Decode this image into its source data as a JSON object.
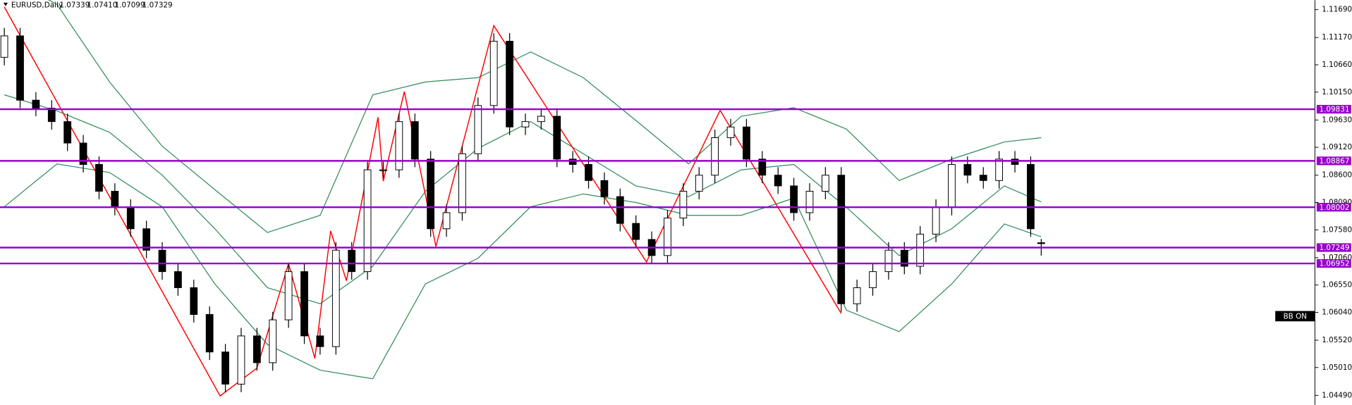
{
  "header": {
    "symbol": "EURUSD,Daily",
    "ohlc": [
      "1.07339",
      "1.07410",
      "1.07099",
      "1.07329"
    ]
  },
  "chart_data": {
    "type": "candlestick",
    "annotation": "BB ON",
    "xlim": [
      0,
      249
    ],
    "ylim": [
      1.04313,
      1.11867
    ],
    "yticks": [
      {
        "value": 1.1169,
        "label": "1.11690"
      },
      {
        "value": 1.1117,
        "label": "1.11170"
      },
      {
        "value": 1.1066,
        "label": "1.10660"
      },
      {
        "value": 1.1015,
        "label": "1.10150"
      },
      {
        "value": 1.0963,
        "label": "1.09630"
      },
      {
        "value": 1.0912,
        "label": "1.09120"
      },
      {
        "value": 1.086,
        "label": "1.08600"
      },
      {
        "value": 1.0809,
        "label": "1.08090"
      },
      {
        "value": 1.0758,
        "label": "1.07580"
      },
      {
        "value": 1.0706,
        "label": "1.07060"
      },
      {
        "value": 1.0655,
        "label": "1.06550"
      },
      {
        "value": 1.0604,
        "label": "1.06040"
      },
      {
        "value": 1.0552,
        "label": "1.05520"
      },
      {
        "value": 1.0501,
        "label": "1.05010"
      },
      {
        "value": 1.0449,
        "label": "1.04490"
      }
    ],
    "up_color": "#ffffff",
    "down_color": "#000000",
    "x": [
      0,
      3,
      6,
      9,
      12,
      15,
      18,
      21,
      24,
      27,
      30,
      33,
      36,
      39,
      42,
      45,
      48,
      51,
      54,
      57,
      60,
      63,
      66,
      69,
      72,
      75,
      78,
      81,
      84,
      87,
      90,
      93,
      96,
      99,
      102,
      105,
      108,
      111,
      114,
      117,
      120,
      123,
      126,
      129,
      132,
      135,
      138,
      141,
      144,
      147,
      150,
      153,
      156,
      159,
      162,
      165,
      168,
      171,
      174,
      177,
      180,
      183,
      186,
      189,
      192,
      195,
      197
    ],
    "open": [
      1.108,
      1.112,
      1.1,
      1.0985,
      1.096,
      1.092,
      1.088,
      1.083,
      1.08,
      1.076,
      1.072,
      1.068,
      1.065,
      1.06,
      1.053,
      1.047,
      1.056,
      1.051,
      1.059,
      1.068,
      1.056,
      1.054,
      1.072,
      1.068,
      1.087,
      1.087,
      1.096,
      1.089,
      1.076,
      1.079,
      1.09,
      1.099,
      1.111,
      1.095,
      1.096,
      1.097,
      1.089,
      1.088,
      1.085,
      1.082,
      1.077,
      1.074,
      1.071,
      1.078,
      1.083,
      1.086,
      1.093,
      1.095,
      1.089,
      1.086,
      1.084,
      1.079,
      1.083,
      1.086,
      1.062,
      1.065,
      1.068,
      1.072,
      1.069,
      1.075,
      1.08,
      1.088,
      1.086,
      1.085,
      1.089,
      1.088,
      1.07339
    ],
    "high": [
      1.1135,
      1.1135,
      1.1015,
      1.1,
      1.0975,
      1.0935,
      1.0895,
      1.0845,
      1.0815,
      1.0775,
      1.0735,
      1.0695,
      1.0665,
      1.0615,
      1.0545,
      1.0575,
      1.0575,
      1.0605,
      1.0695,
      1.0695,
      1.0575,
      1.0735,
      1.0735,
      1.0885,
      1.0885,
      1.0975,
      1.0975,
      1.0905,
      1.0805,
      1.0915,
      1.1005,
      1.1125,
      1.1125,
      1.0975,
      1.0985,
      1.0985,
      1.0905,
      1.0895,
      1.0865,
      1.0835,
      1.0785,
      1.0755,
      1.0795,
      1.0845,
      1.0875,
      1.0945,
      1.0965,
      1.0965,
      1.0905,
      1.0875,
      1.0855,
      1.0845,
      1.0875,
      1.0875,
      1.0665,
      1.0695,
      1.0735,
      1.0735,
      1.0765,
      1.0815,
      1.0895,
      1.0895,
      1.0875,
      1.0905,
      1.0905,
      1.0895,
      1.0741
    ],
    "low": [
      1.1065,
      1.0985,
      1.097,
      1.0945,
      1.0905,
      1.0865,
      1.0815,
      1.0785,
      1.0745,
      1.0705,
      1.0665,
      1.0635,
      1.0585,
      1.0515,
      1.0455,
      1.0455,
      1.0495,
      1.0495,
      1.0575,
      1.0545,
      1.0525,
      1.0525,
      1.0665,
      1.0665,
      1.0855,
      1.0855,
      1.0875,
      1.0745,
      1.0745,
      1.0775,
      1.0885,
      1.0975,
      1.0935,
      1.0935,
      1.0945,
      1.0875,
      1.0865,
      1.0835,
      1.0805,
      1.0755,
      1.0725,
      1.0695,
      1.0695,
      1.0765,
      1.0815,
      1.0845,
      1.0915,
      1.0875,
      1.0845,
      1.0825,
      1.0775,
      1.0775,
      1.0815,
      1.0605,
      1.0605,
      1.0635,
      1.0665,
      1.0675,
      1.0675,
      1.0735,
      1.0785,
      1.0845,
      1.0835,
      1.0835,
      1.0865,
      1.0745,
      1.07099
    ],
    "close": [
      1.112,
      1.1,
      1.0985,
      1.096,
      1.092,
      1.088,
      1.083,
      1.08,
      1.076,
      1.072,
      1.068,
      1.065,
      1.06,
      1.053,
      1.047,
      1.056,
      1.051,
      1.059,
      1.068,
      1.056,
      1.054,
      1.072,
      1.068,
      1.087,
      1.087,
      1.096,
      1.089,
      1.076,
      1.079,
      1.09,
      1.099,
      1.111,
      1.095,
      1.096,
      1.097,
      1.089,
      1.088,
      1.085,
      1.082,
      1.077,
      1.074,
      1.071,
      1.078,
      1.083,
      1.086,
      1.093,
      1.095,
      1.089,
      1.086,
      1.084,
      1.079,
      1.083,
      1.086,
      1.062,
      1.065,
      1.068,
      1.072,
      1.069,
      1.075,
      1.08,
      1.088,
      1.086,
      1.085,
      1.089,
      1.088,
      1.076,
      1.07329
    ],
    "bands": {
      "color": "#2e8b57",
      "x": [
        0,
        10,
        20,
        30,
        40,
        50,
        60,
        70,
        80,
        90,
        100,
        110,
        120,
        130,
        140,
        150,
        160,
        170,
        180,
        190,
        197
      ],
      "upper": [
        1.123,
        1.1179,
        1.1034,
        1.0914,
        1.0833,
        1.0753,
        1.0785,
        1.101,
        1.1034,
        1.1042,
        1.109,
        1.1042,
        1.0962,
        1.0881,
        1.097,
        1.0986,
        1.0946,
        1.085,
        1.089,
        1.0922,
        1.093
      ],
      "middle": [
        1.101,
        1.098,
        1.094,
        1.086,
        1.076,
        1.065,
        1.062,
        1.069,
        1.083,
        1.091,
        1.096,
        1.09,
        1.084,
        1.082,
        1.087,
        1.088,
        1.08,
        1.071,
        1.076,
        1.084,
        1.081
      ],
      "lower": [
        1.0801,
        1.0881,
        1.0865,
        1.0801,
        1.0657,
        1.0544,
        1.0496,
        1.048,
        1.0657,
        1.0705,
        1.0801,
        1.0825,
        1.0809,
        1.0785,
        1.0785,
        1.0817,
        1.0608,
        1.0568,
        1.0657,
        1.0769,
        1.0745
      ]
    },
    "zigzag": {
      "color": "#ff0000",
      "x": [
        0,
        41,
        48,
        54,
        59,
        62,
        65,
        71,
        72,
        76,
        82,
        93,
        122,
        136,
        159
      ],
      "values": [
        1.1174,
        1.0448,
        1.05,
        1.0695,
        1.0518,
        1.0756,
        1.0663,
        1.0968,
        1.0849,
        1.1016,
        1.0727,
        1.1139,
        1.0698,
        1.0981,
        1.0602
      ]
    },
    "levels": {
      "color": "#9900cc",
      "values": [
        1.09831,
        1.08867,
        1.08002,
        1.07249,
        1.06952
      ]
    }
  }
}
